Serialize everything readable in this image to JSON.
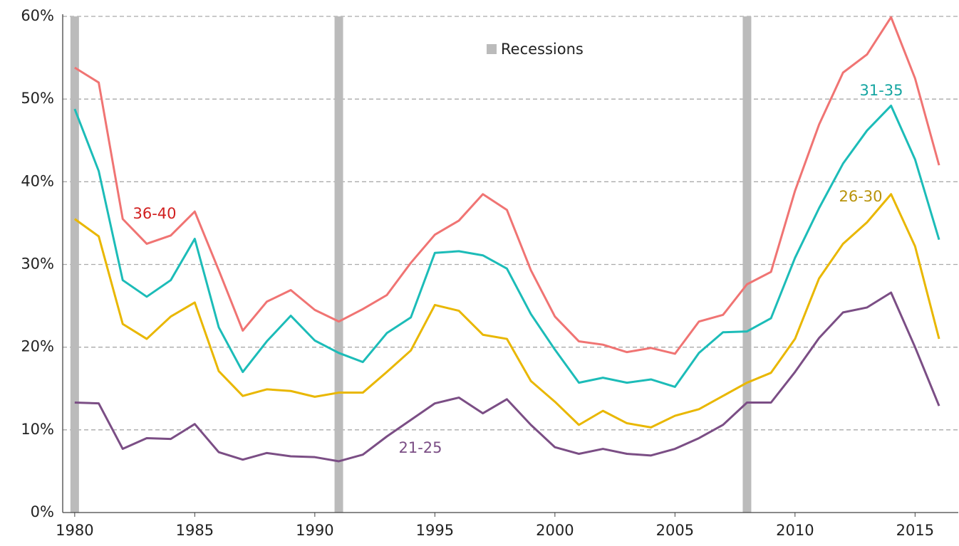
{
  "chart_data": {
    "type": "line",
    "x": [
      1980,
      1981,
      1982,
      1983,
      1984,
      1985,
      1986,
      1987,
      1988,
      1989,
      1990,
      1991,
      1992,
      1993,
      1994,
      1995,
      1996,
      1997,
      1998,
      1999,
      2000,
      2001,
      2002,
      2003,
      2004,
      2005,
      2006,
      2007,
      2008,
      2009,
      2010,
      2011,
      2012,
      2013,
      2014,
      2015,
      2016
    ],
    "series": [
      {
        "name": "36-40",
        "color": "#f07473",
        "label_color": "#d11f1f",
        "values": [
          53.8,
          52.0,
          35.5,
          32.5,
          33.5,
          36.4,
          29.3,
          22.0,
          25.5,
          26.9,
          24.5,
          23.1,
          24.6,
          26.3,
          30.2,
          33.6,
          35.3,
          38.5,
          36.6,
          29.3,
          23.7,
          20.7,
          20.3,
          19.4,
          19.9,
          19.2,
          23.1,
          23.9,
          27.6,
          29.1,
          38.9,
          46.9,
          53.2,
          55.4,
          59.9,
          52.5,
          42.0
        ]
      },
      {
        "name": "31-35",
        "color": "#1cbcb8",
        "label_color": "#14a5a1",
        "values": [
          48.8,
          41.3,
          28.1,
          26.1,
          28.1,
          33.1,
          22.4,
          17.0,
          20.7,
          23.8,
          20.8,
          19.3,
          18.2,
          21.7,
          23.6,
          31.4,
          31.6,
          31.1,
          29.5,
          24.0,
          19.7,
          15.7,
          16.3,
          15.7,
          16.1,
          15.2,
          19.3,
          21.8,
          21.9,
          23.5,
          30.8,
          36.8,
          42.2,
          46.2,
          49.2,
          42.7,
          33.0
        ]
      },
      {
        "name": "26-30",
        "color": "#e9b700",
        "label_color": "#b8930a",
        "values": [
          35.5,
          33.4,
          22.8,
          21.0,
          23.7,
          25.4,
          17.1,
          14.1,
          14.9,
          14.7,
          14.0,
          14.5,
          14.5,
          17.0,
          19.6,
          25.1,
          24.4,
          21.5,
          21.0,
          15.9,
          13.4,
          10.6,
          12.3,
          10.8,
          10.3,
          11.7,
          12.5,
          14.1,
          15.7,
          16.9,
          21.0,
          28.3,
          32.5,
          35.1,
          38.5,
          32.2,
          21.0
        ]
      },
      {
        "name": "21-25",
        "color": "#7b4e85",
        "label_color": "#7b4e85",
        "values": [
          13.3,
          13.2,
          7.7,
          9.0,
          8.9,
          10.7,
          7.3,
          6.4,
          7.2,
          6.8,
          6.7,
          6.2,
          7.0,
          9.2,
          11.2,
          13.2,
          13.9,
          12.0,
          13.7,
          10.6,
          7.9,
          7.1,
          7.7,
          7.1,
          6.9,
          7.7,
          9.0,
          10.6,
          13.3,
          13.3,
          17.0,
          21.1,
          24.2,
          24.8,
          26.6,
          20.0,
          12.9
        ]
      }
    ],
    "recessions": [
      1980,
      1991,
      2008
    ],
    "recession_color": "#bbbbbb",
    "legend_label": "Recessions",
    "xlim": [
      1979.5,
      2016.8
    ],
    "xticks": [
      1980,
      1985,
      1990,
      1995,
      2000,
      2005,
      2010,
      2015
    ],
    "ylim": [
      0,
      60
    ],
    "yticks": [
      {
        "value": 0,
        "label": "0%"
      },
      {
        "value": 10,
        "label": "10%"
      },
      {
        "value": 20,
        "label": "20%"
      },
      {
        "value": 30,
        "label": "30%"
      },
      {
        "value": 40,
        "label": "40%"
      },
      {
        "value": 50,
        "label": "50%"
      },
      {
        "value": 60,
        "label": "60%"
      }
    ],
    "grid": true
  }
}
